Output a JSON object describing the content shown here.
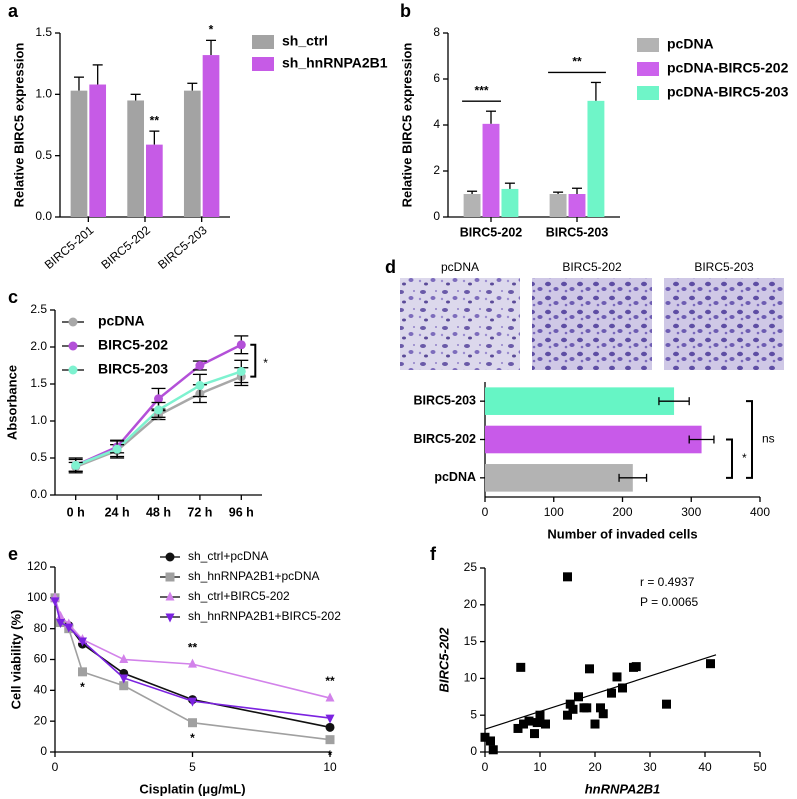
{
  "chart_data": [
    {
      "type": "bar",
      "panel_label": "a",
      "y_label": "Relative BIRC5 expression",
      "categories": [
        "BIRC5-201",
        "BIRC5-202",
        "BIRC5-203"
      ],
      "series": [
        {
          "name": "sh_ctrl",
          "color": "#a3a3a3",
          "values": [
            1.03,
            0.95,
            1.03
          ],
          "errors": [
            0.11,
            0.05,
            0.06
          ]
        },
        {
          "name": "sh_hnRNPA2B1",
          "color": "#c65be6",
          "values": [
            1.08,
            0.59,
            1.32
          ],
          "errors": [
            0.16,
            0.11,
            0.12
          ]
        }
      ],
      "ylim": [
        0,
        1.5
      ],
      "yticks": [
        {
          "value": 0,
          "label": "0.0"
        },
        0.5,
        {
          "value": 1,
          "label": "1.0"
        },
        1.5
      ],
      "annotations": [
        "**",
        "*"
      ]
    },
    {
      "type": "bar",
      "panel_label": "b",
      "y_label": "Relative BIRC5 expression",
      "categories": [
        "BIRC5-202",
        "BIRC5-203"
      ],
      "series": [
        {
          "name": "pcDNA",
          "color": "#b3b3b3",
          "values": [
            1.0,
            1.0
          ],
          "errors": [
            0.12,
            0.08
          ]
        },
        {
          "name": "pcDNA-BIRC5-202",
          "color": "#cc62ec",
          "values": [
            4.05,
            1.0
          ],
          "errors": [
            0.55,
            0.25
          ]
        },
        {
          "name": "pcDNA-BIRC5-203",
          "color": "#6ff5c8",
          "values": [
            1.22,
            5.05
          ],
          "errors": [
            0.25,
            0.8
          ]
        }
      ],
      "ylim": [
        0,
        8
      ],
      "yticks": [
        0,
        2,
        4,
        6,
        8
      ],
      "annotations": [
        "***",
        "**"
      ]
    },
    {
      "type": "line",
      "panel_label": "c",
      "y_label": "Absorbance",
      "categories": [
        "0 h",
        "24 h",
        "48 h",
        "72 h",
        "96 h"
      ],
      "series": [
        {
          "name": "pcDNA",
          "color": "#a8a8a8",
          "values": [
            0.38,
            0.6,
            1.08,
            1.37,
            1.6
          ],
          "errors": [
            0.06,
            0.08,
            0.06,
            0.12,
            0.12
          ]
        },
        {
          "name": "BIRC5-202",
          "color": "#b350d8",
          "values": [
            0.4,
            0.65,
            1.3,
            1.75,
            2.03
          ],
          "errors": [
            0.08,
            0.08,
            0.14,
            0.06,
            0.12
          ]
        },
        {
          "name": "BIRC5-203",
          "color": "#7ef2d0",
          "values": [
            0.4,
            0.62,
            1.15,
            1.48,
            1.67
          ],
          "errors": [
            0.1,
            0.12,
            0.1,
            0.15,
            0.15
          ]
        }
      ],
      "ylim": [
        0,
        2.5
      ],
      "yticks": [
        {
          "value": 0,
          "label": "0.0"
        },
        0.5,
        {
          "value": 1,
          "label": "1.0"
        },
        1.5,
        {
          "value": 2,
          "label": "2.0"
        },
        2.5
      ],
      "annotations": [
        "*"
      ]
    },
    {
      "type": "hbar",
      "panel_label": "d",
      "x_label": "Number of invaded cells",
      "image_labels": [
        "pcDNA",
        "BIRC5-202",
        "BIRC5-203"
      ],
      "categories": [
        "pcDNA",
        "BIRC5-202",
        "BIRC5-203"
      ],
      "values": [
        215,
        315,
        275
      ],
      "errors": [
        20,
        18,
        22
      ],
      "colors": [
        "#b3b3b3",
        "#c85ae9",
        "#66f5c5"
      ],
      "xlim": [
        0,
        400
      ],
      "xticks": [
        0,
        100,
        200,
        300,
        400
      ],
      "annotations": [
        "*",
        "ns"
      ]
    },
    {
      "type": "line-xy",
      "panel_label": "e",
      "x_label": "Cisplatin (μg/mL)",
      "y_label": "Cell viability (%)",
      "x": [
        0,
        0.2,
        0.5,
        1,
        2.5,
        5,
        10
      ],
      "series": [
        {
          "name": "sh_ctrl+pcDNA",
          "color": "#111111",
          "marker": "circle",
          "values": [
            100,
            84,
            82,
            70,
            51,
            34,
            16
          ]
        },
        {
          "name": "sh_hnRNPA2B1+pcDNA",
          "color": "#a0a0a0",
          "marker": "square",
          "values": [
            100,
            84,
            80,
            52,
            43,
            19,
            8
          ]
        },
        {
          "name": "sh_ctrl+BIRC5-202",
          "color": "#d282ea",
          "marker": "triangle-up",
          "values": [
            100,
            88,
            83,
            73,
            60,
            57,
            35
          ]
        },
        {
          "name": "sh_hnRNPA2B1+BIRC5-202",
          "color": "#7b22e0",
          "marker": "triangle-down",
          "values": [
            98,
            84,
            81,
            72,
            48,
            33,
            22
          ]
        }
      ],
      "xlim": [
        0,
        10
      ],
      "xticks": [
        0,
        5,
        10
      ],
      "ylim": [
        0,
        120
      ],
      "yticks": [
        0,
        20,
        40,
        60,
        80,
        100,
        120
      ],
      "annotations": [
        "*",
        "*",
        "*",
        "**",
        "**"
      ]
    },
    {
      "type": "scatter",
      "panel_label": "f",
      "x_label": "hnRNPA2B1",
      "y_label": "BIRC5-202",
      "x": [
        0,
        1,
        1.5,
        6,
        6.5,
        7,
        8,
        9,
        9.5,
        10,
        11,
        15,
        15,
        15.5,
        16,
        17,
        18,
        18.5,
        19,
        20,
        21,
        21.5,
        23,
        24,
        25,
        27,
        27.5,
        33,
        41
      ],
      "y": [
        2,
        1.5,
        0.3,
        3.2,
        11.5,
        3.8,
        4.2,
        2.5,
        4,
        5,
        3.8,
        23.8,
        5,
        6.5,
        5.8,
        7.5,
        6,
        6,
        11.3,
        3.8,
        6,
        5.2,
        8,
        10.2,
        8.7,
        11.5,
        11.6,
        6.5,
        12
      ],
      "color": "#000000",
      "fit_line": {
        "x": [
          0,
          42
        ],
        "y": [
          3.1,
          13.2
        ]
      },
      "xlim": [
        0,
        50
      ],
      "xticks": [
        0,
        10,
        20,
        30,
        40,
        50
      ],
      "ylim": [
        0,
        25
      ],
      "yticks": [
        0,
        5,
        10,
        15,
        20,
        25
      ],
      "annotations": [
        "r = 0.4937",
        "P = 0.0065"
      ]
    }
  ]
}
